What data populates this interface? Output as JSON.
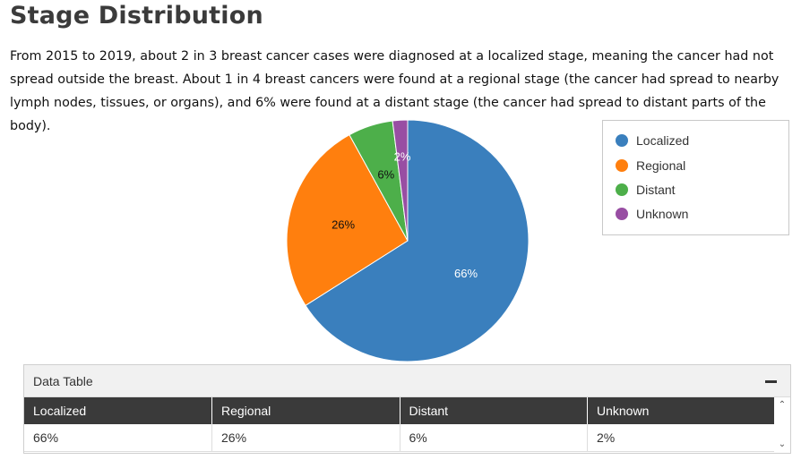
{
  "page": {
    "title": "Stage Distribution",
    "intro": "From 2015 to 2019, about 2 in 3 breast cancer cases were diagnosed at a localized stage, meaning the cancer had not spread outside the breast. About 1 in 4 breast cancers were found at a regional stage (the cancer had spread to nearby lymph nodes, tissues, or organs), and 6% were found at a distant stage (the cancer had spread to distant parts of the body)."
  },
  "chart_data": {
    "type": "pie",
    "title": "",
    "categories": [
      "Localized",
      "Regional",
      "Distant",
      "Unknown"
    ],
    "values": [
      66,
      26,
      6,
      2
    ],
    "value_labels": [
      "66%",
      "26%",
      "6%",
      "2%"
    ],
    "colors": [
      "#3a7fbd",
      "#ff7f0e",
      "#4daf4a",
      "#984ea3"
    ],
    "label_colors": [
      "#ffffff",
      "#111111",
      "#111111",
      "#ffffff"
    ],
    "start": "12 o'clock, clockwise",
    "legend": {
      "position": "top-right",
      "entries": [
        "Localized",
        "Regional",
        "Distant",
        "Unknown"
      ]
    }
  },
  "table_panel": {
    "title": "Data Table",
    "headers": [
      "Localized",
      "Regional",
      "Distant",
      "Unknown"
    ],
    "row": [
      "66%",
      "26%",
      "6%",
      "2%"
    ]
  }
}
